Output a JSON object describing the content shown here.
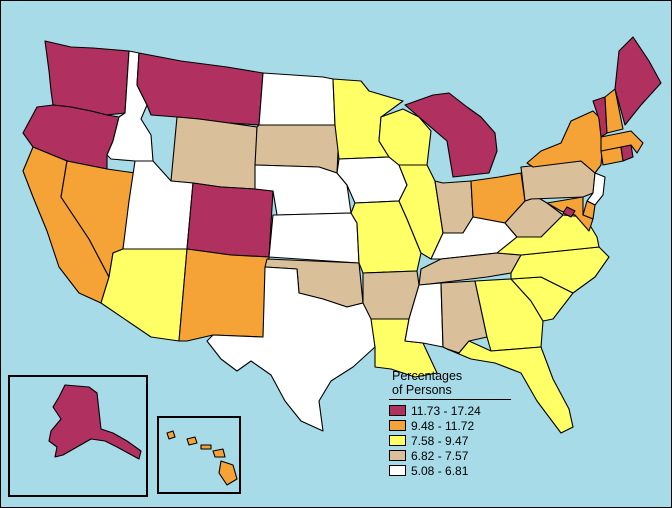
{
  "colors": {
    "water": "#a7dbe8",
    "class1": "#b03060",
    "class2": "#f5a236",
    "class3": "#ffff66",
    "class4": "#d9bf9a",
    "class5": "#ffffff"
  },
  "legend": {
    "title_line1": "Percentages",
    "title_line2": "of Persons",
    "items": [
      {
        "label": "11.73 - 17.24",
        "color": "#b03060"
      },
      {
        "label": "9.48 - 11.72",
        "color": "#f5a236"
      },
      {
        "label": "7.58 - 9.47",
        "color": "#ffff66"
      },
      {
        "label": "6.82 - 7.57",
        "color": "#d9bf9a"
      },
      {
        "label": "5.08 - 6.81",
        "color": "#ffffff"
      }
    ]
  },
  "states": {
    "WA": 1,
    "OR": 1,
    "ID": 5,
    "MT": 1,
    "WY": 4,
    "CA": 2,
    "NV": 2,
    "UT": 5,
    "CO": 1,
    "AZ": 3,
    "NM": 2,
    "ND": 5,
    "SD": 4,
    "NE": 5,
    "KS": 5,
    "OK": 4,
    "TX": 5,
    "MN": 3,
    "IA": 5,
    "MO": 3,
    "AR": 4,
    "LA": 3,
    "WI": 3,
    "IL": 3,
    "MI": 1,
    "IN": 4,
    "OH": 2,
    "KY": 5,
    "TN": 4,
    "MS": 5,
    "AL": 4,
    "GA": 3,
    "FL": 3,
    "SC": 3,
    "NC": 3,
    "VA": 3,
    "WV": 4,
    "PA": 4,
    "NY": 2,
    "VT": 1,
    "NH": 2,
    "ME": 1,
    "MA": 2,
    "RI": 1,
    "CT": 2,
    "NJ": 5,
    "DE": 2,
    "MD": 2,
    "DC": 1,
    "AK": 1,
    "HI": 2
  }
}
